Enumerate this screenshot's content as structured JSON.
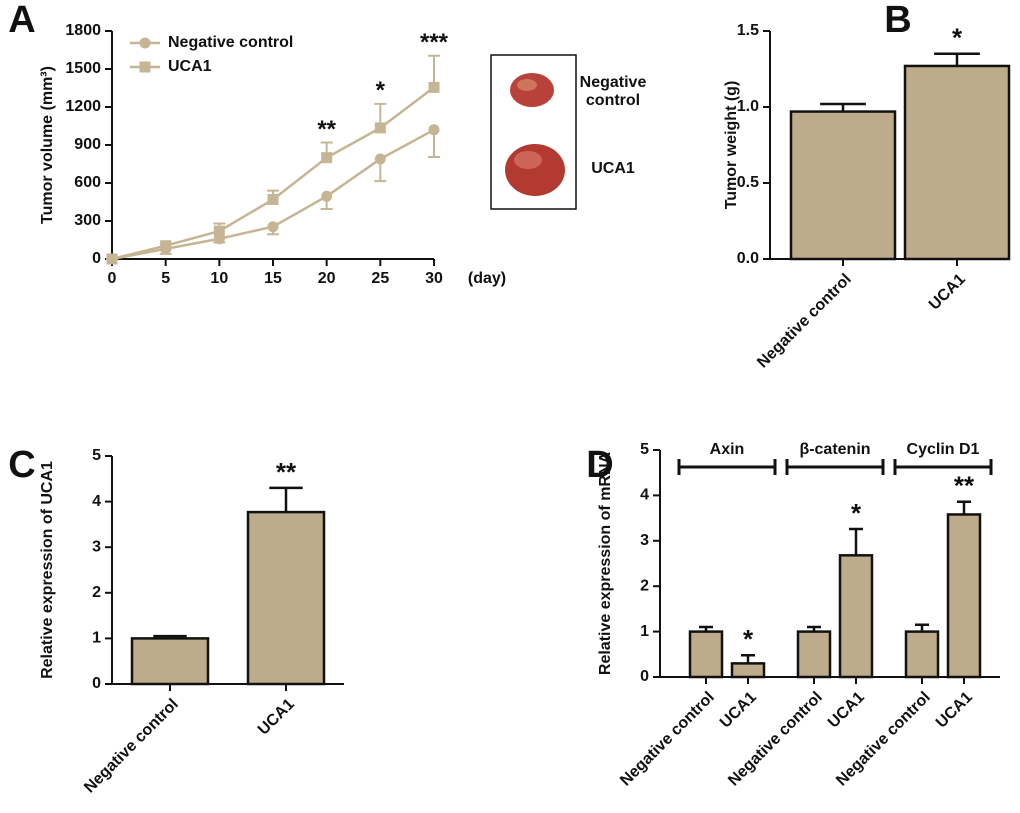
{
  "chart_data": [
    {
      "type": "line",
      "panel": "A",
      "x": [
        0,
        5,
        10,
        15,
        20,
        25,
        30
      ],
      "xlabel": "(day)",
      "ylabel": "Tumor volume (mm³)",
      "xlim": [
        0,
        30
      ],
      "xticks": [
        0,
        5,
        10,
        15,
        20,
        25,
        30
      ],
      "ylim": [
        0,
        1800
      ],
      "yticks": [
        0,
        300,
        600,
        900,
        1200,
        1500,
        1800
      ],
      "legend": "upper left",
      "series": [
        {
          "name": "Negative control",
          "color": "#c6b594",
          "marker": "circle",
          "error_direction": "down",
          "values": [
            0,
            80,
            160,
            255,
            495,
            790,
            1020
          ],
          "errors": [
            0,
            40,
            30,
            60,
            100,
            175,
            215
          ]
        },
        {
          "name": "UCA1",
          "color": "#c6b594",
          "marker": "square",
          "error_direction": "up",
          "values": [
            0,
            105,
            220,
            470,
            800,
            1035,
            1355
          ],
          "errors": [
            0,
            15,
            60,
            70,
            120,
            190,
            250
          ]
        }
      ],
      "annotations": [
        {
          "text": "**",
          "x": 20
        },
        {
          "text": "*",
          "x": 25
        },
        {
          "text": "***",
          "x": 30
        }
      ],
      "inset_labels": [
        "Negative control",
        "UCA1"
      ]
    },
    {
      "type": "bar",
      "panel": "B",
      "categories": [
        "Negative control",
        "UCA1"
      ],
      "values": [
        0.97,
        1.27
      ],
      "errors": [
        0.05,
        0.08
      ],
      "color": "#bdac8b",
      "ylabel": "Tumor weight (g)",
      "ylim": [
        0,
        1.5
      ],
      "yticks": [
        {
          "value": 0,
          "label": "0.0"
        },
        0.5,
        {
          "value": 1,
          "label": "1.0"
        },
        1.5
      ],
      "annotations": [
        {
          "text": "*",
          "category": 1
        }
      ]
    },
    {
      "type": "bar",
      "panel": "C",
      "categories": [
        "Negative control",
        "UCA1"
      ],
      "values": [
        1.0,
        3.77
      ],
      "errors": [
        0.05,
        0.53
      ],
      "color": "#bdac8b",
      "ylabel": "Relative expression of UCA1",
      "ylim": [
        0,
        5
      ],
      "yticks": [
        0,
        1,
        2,
        3,
        4,
        5
      ],
      "annotations": [
        {
          "text": "**",
          "category": 1
        }
      ]
    },
    {
      "type": "bar",
      "panel": "D",
      "categories": [
        "Negative control",
        "UCA1",
        "Negative control",
        "UCA1",
        "Negative control",
        "UCA1"
      ],
      "values": [
        1.0,
        0.3,
        1.0,
        2.68,
        1.0,
        3.58
      ],
      "errors": [
        0.1,
        0.18,
        0.1,
        0.58,
        0.15,
        0.28
      ],
      "color": "#bdac8b",
      "ylabel": "Relative expression of mRNA",
      "ylim": [
        0,
        5
      ],
      "yticks": [
        0,
        1,
        2,
        3,
        4,
        5
      ],
      "groups": [
        "Axin",
        "β-catenin",
        "Cyclin D1"
      ],
      "annotations": [
        {
          "text": "*",
          "category": 1
        },
        {
          "text": "*",
          "category": 3
        },
        {
          "text": "**",
          "category": 5
        }
      ]
    }
  ]
}
